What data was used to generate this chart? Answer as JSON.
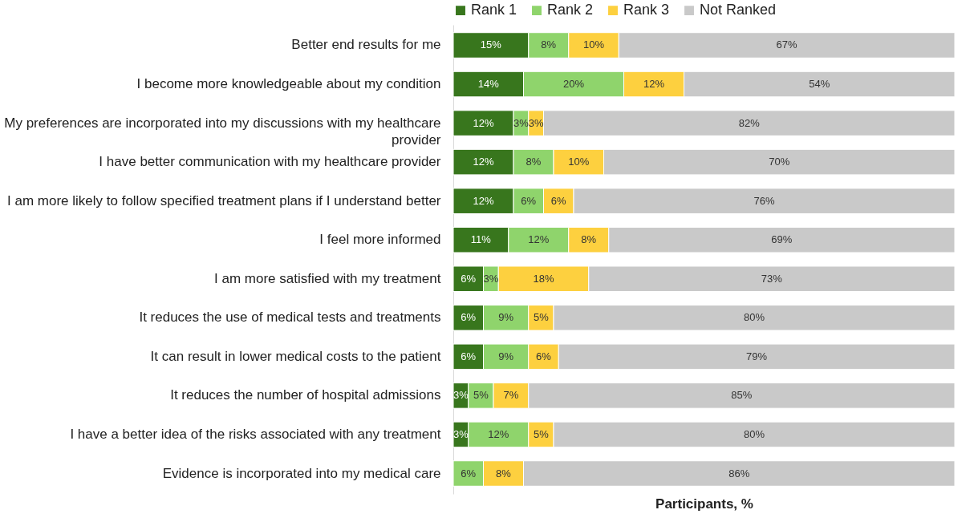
{
  "chart_data": {
    "type": "bar",
    "orientation": "horizontal",
    "stacked": true,
    "xlabel": "Participants, %",
    "xlim": [
      0,
      100
    ],
    "tick_labels": "y",
    "legend": "top",
    "grid": false,
    "categories": [
      "Better end results for me",
      "I become more knowledgeable about my condition ",
      "My preferences are incorporated into my discussions with my healthcare provider",
      "I have better communication with my healthcare provider",
      "I am more likely to follow specified treatment plans if I understand better",
      "I feel more informed",
      "I am more satisfied with my treatment ",
      "It reduces the use of medical tests and treatments",
      "It can result in lower medical costs to the patient ",
      "It reduces the number of hospital admissions",
      "I have a better idea of the risks associated with any treatment",
      "Evidence is incorporated into my medical care"
    ],
    "series": [
      {
        "name": "Rank 1",
        "color": "#38761d",
        "values": [
          15,
          14,
          12,
          12,
          12,
          11,
          6,
          6,
          6,
          3,
          3,
          null
        ],
        "value_labels": [
          "15%",
          "14%",
          "12%",
          "12%",
          "12%",
          "11%",
          "6%",
          "6%",
          "6%",
          "3%",
          "3%",
          null
        ]
      },
      {
        "name": "Rank 2",
        "color": "#8fd46c",
        "values": [
          8,
          20,
          3,
          8,
          6,
          12,
          3,
          9,
          9,
          5,
          12,
          6
        ],
        "value_labels": [
          "8%",
          "20%",
          "3%",
          "8%",
          "6%",
          "12%",
          "3%",
          "9%",
          "9%",
          "5%",
          "12%",
          "6%"
        ]
      },
      {
        "name": "Rank 3",
        "color": "#fdd03f",
        "values": [
          10,
          12,
          3,
          10,
          6,
          8,
          18,
          5,
          6,
          7,
          5,
          8
        ],
        "value_labels": [
          "10%",
          "12%",
          "3%",
          "10%",
          "6%",
          "8%",
          "18%",
          "5%",
          "6%",
          "7%",
          "5%",
          "8%"
        ]
      },
      {
        "name": "Not Ranked",
        "color": "#c9c9c9",
        "values": [
          67,
          54,
          82,
          70,
          76,
          69,
          73,
          80,
          79,
          85,
          80,
          86
        ],
        "value_labels": [
          "67%",
          "54%",
          "82%",
          "70%",
          "76%",
          "69%",
          "73%",
          "80%",
          "79%",
          "85%",
          "80%",
          "86%"
        ]
      }
    ]
  }
}
